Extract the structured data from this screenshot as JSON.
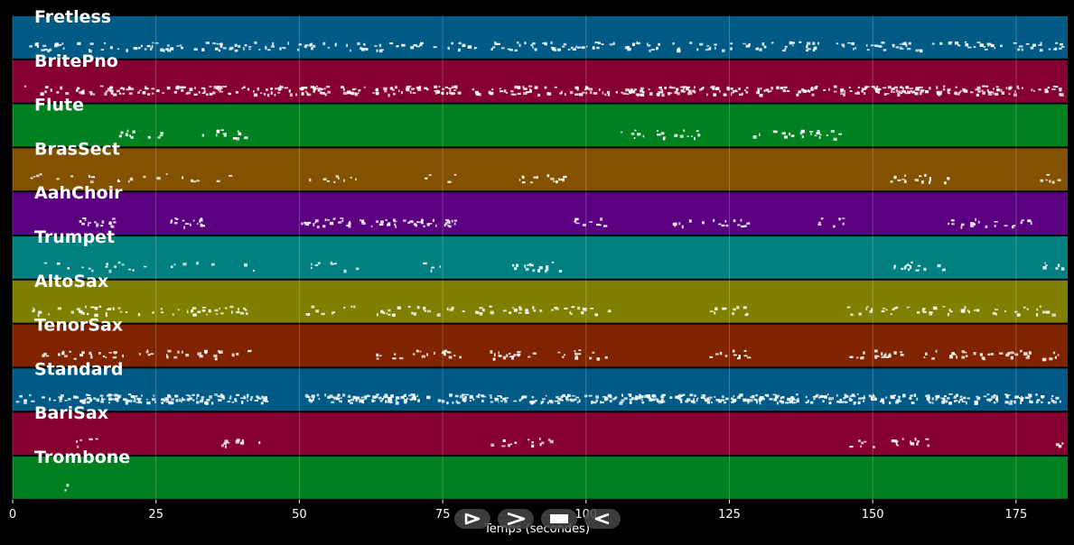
{
  "chart_data": {
    "type": "piano-roll",
    "xlabel": "Temps (secondes)",
    "xlim": [
      0,
      184
    ],
    "x_ticks": [
      0,
      25,
      50,
      75,
      100,
      125,
      150,
      175
    ],
    "grid": true,
    "tracks": [
      {
        "name": "Fretless",
        "color": "#005a86",
        "segments": [
          [
            2,
            10,
            1.2
          ],
          [
            11,
            62,
            1
          ],
          [
            63,
            98,
            1
          ],
          [
            98,
            160,
            1
          ],
          [
            160,
            183,
            1
          ]
        ]
      },
      {
        "name": "BritePno",
        "color": "#850030",
        "segments": [
          [
            2,
            10,
            0.6
          ],
          [
            11,
            78,
            1.8
          ],
          [
            79,
            97,
            1.2
          ],
          [
            97,
            160,
            2
          ],
          [
            160,
            183,
            1.8
          ]
        ]
      },
      {
        "name": "Flute",
        "color": "#008020",
        "segments": [
          [
            18,
            26,
            0.9
          ],
          [
            33,
            42,
            0.9
          ],
          [
            105,
            120,
            0.9
          ],
          [
            129,
            145,
            0.9
          ]
        ]
      },
      {
        "name": "BrasSect",
        "color": "#825200",
        "segments": [
          [
            3,
            42,
            0.35
          ],
          [
            51,
            60,
            0.6
          ],
          [
            70,
            78,
            0.3
          ],
          [
            87,
            97,
            1
          ],
          [
            153,
            163,
            1
          ],
          [
            179,
            183,
            0.9
          ]
        ]
      },
      {
        "name": "AahChoir",
        "color": "#5a0080",
        "segments": [
          [
            11,
            18,
            1.5
          ],
          [
            26,
            33,
            1.5
          ],
          [
            50,
            77,
            1.5
          ],
          [
            97,
            104,
            0.9
          ],
          [
            115,
            129,
            0.9
          ],
          [
            140,
            145,
            0.9
          ],
          [
            163,
            178,
            0.9
          ]
        ]
      },
      {
        "name": "Trumpet",
        "color": "#008080",
        "segments": [
          [
            3,
            42,
            0.35
          ],
          [
            51,
            60,
            0.6
          ],
          [
            70,
            78,
            0.3
          ],
          [
            87,
            97,
            1
          ],
          [
            153,
            163,
            1
          ],
          [
            179,
            183,
            0.9
          ]
        ]
      },
      {
        "name": "AltoSax",
        "color": "#808000",
        "segments": [
          [
            3,
            42,
            0.9
          ],
          [
            51,
            60,
            0.7
          ],
          [
            63,
            82,
            0.9
          ],
          [
            83,
            97,
            0.9
          ],
          [
            97,
            104,
            0.9
          ],
          [
            121,
            129,
            0.9
          ],
          [
            145,
            160,
            0.9
          ],
          [
            160,
            183,
            0.9
          ]
        ]
      },
      {
        "name": "TenorSax",
        "color": "#802400",
        "segments": [
          [
            3,
            42,
            0.8
          ],
          [
            63,
            78,
            0.9
          ],
          [
            83,
            97,
            0.9
          ],
          [
            97,
            104,
            0.9
          ],
          [
            121,
            129,
            0.9
          ],
          [
            145,
            160,
            0.9
          ],
          [
            160,
            183,
            0.9
          ]
        ]
      },
      {
        "name": "Standard",
        "color": "#005a86",
        "segments": [
          [
            0,
            11,
            1
          ],
          [
            11,
            44,
            2.5
          ],
          [
            51,
            82,
            2.5
          ],
          [
            83,
            98,
            2.2
          ],
          [
            98,
            128,
            2.5
          ],
          [
            128,
            183,
            2.5
          ]
        ]
      },
      {
        "name": "BariSax",
        "color": "#850030",
        "segments": [
          [
            11,
            15,
            0.8
          ],
          [
            35,
            43,
            0.8
          ],
          [
            83,
            94,
            0.8
          ],
          [
            145,
            160,
            0.8
          ],
          [
            181,
            183,
            0.8
          ]
        ]
      },
      {
        "name": "Trombone",
        "color": "#008020",
        "segments": [
          [
            9,
            10,
            1
          ]
        ]
      }
    ]
  },
  "controls": [
    {
      "name": "play-icon"
    },
    {
      "name": "forward-icon"
    },
    {
      "name": "stop-icon"
    },
    {
      "name": "back-icon"
    }
  ]
}
